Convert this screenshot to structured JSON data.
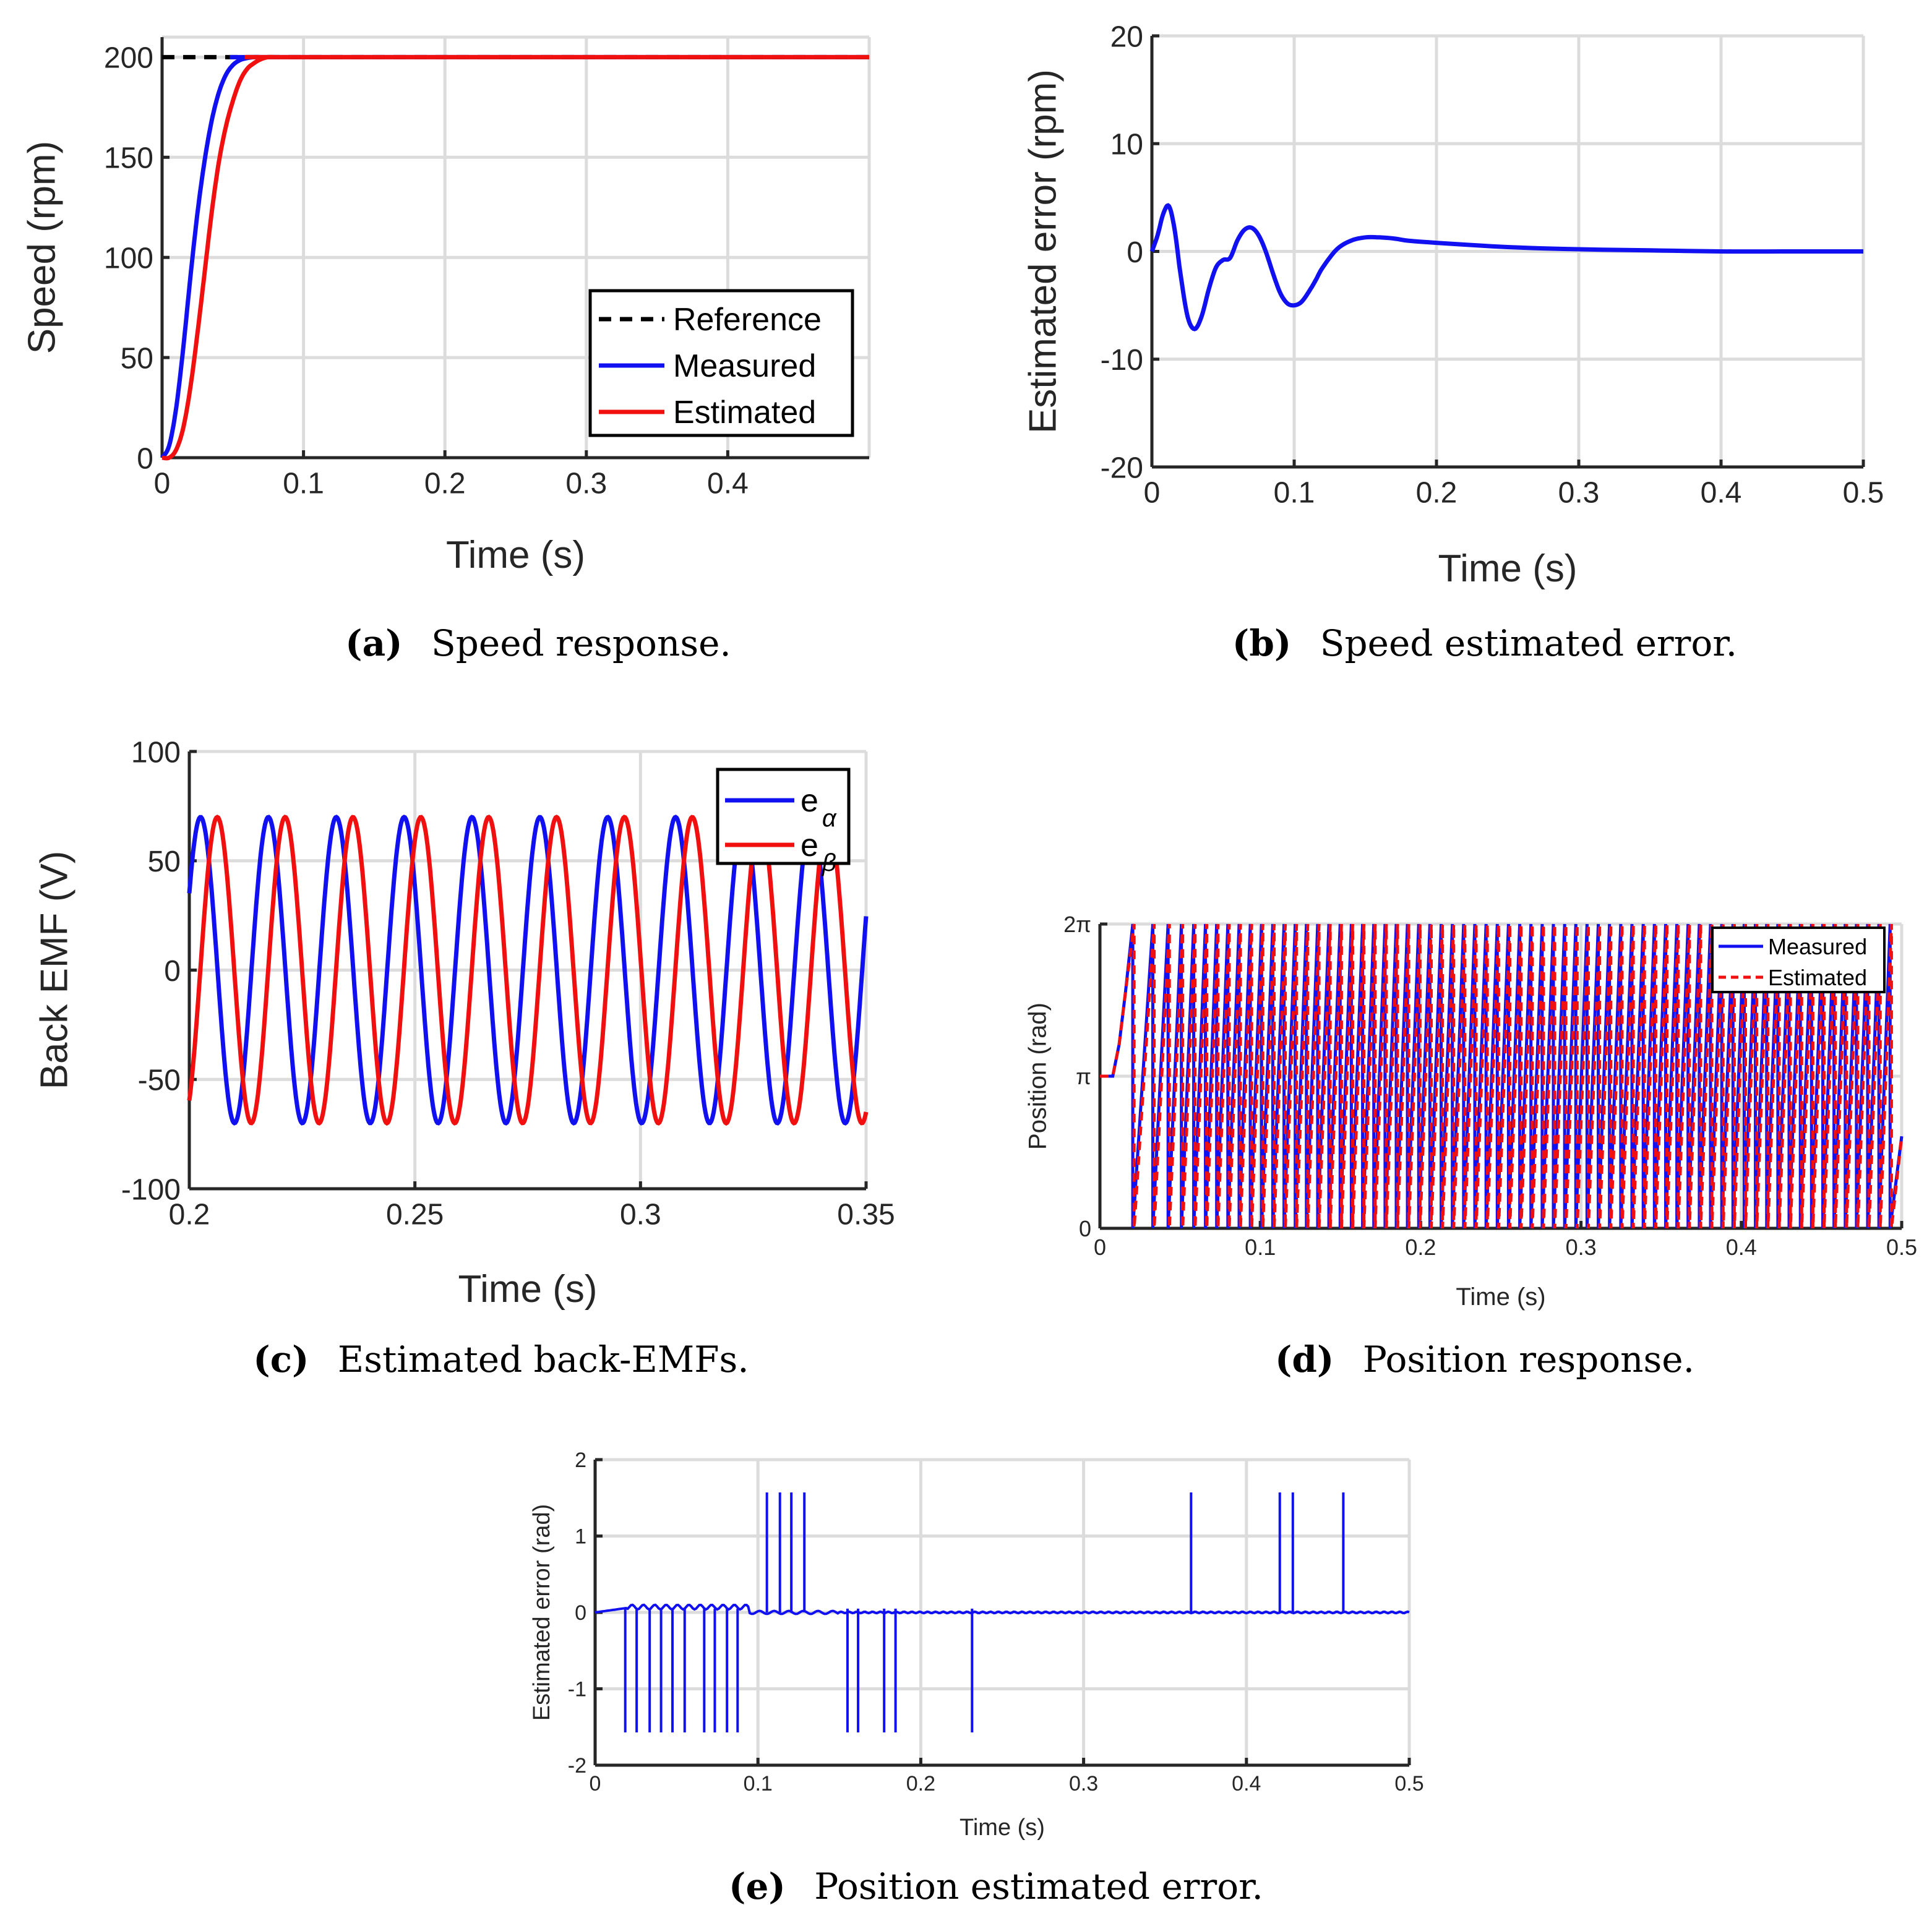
{
  "colors": {
    "blue": "#1010f0",
    "red": "#f01010",
    "black": "#000000",
    "grid": "#dcdcdc",
    "axis": "#262626"
  },
  "captions": [
    {
      "letter": "(a)",
      "text": "Speed response."
    },
    {
      "letter": "(b)",
      "text": "Speed estimated error."
    },
    {
      "letter": "(c)",
      "text": "Estimated back-EMFs."
    },
    {
      "letter": "(d)",
      "text": "Position response."
    },
    {
      "letter": "(e)",
      "text": "Position estimated error."
    }
  ],
  "chart_data": [
    {
      "id": "a",
      "type": "line",
      "title": "Speed response.",
      "xlabel": "Time (s)",
      "ylabel": "Speed (rpm)",
      "xlim": [
        0,
        0.5
      ],
      "ylim": [
        0,
        210
      ],
      "xticks": [
        0,
        0.1,
        0.2,
        0.3,
        0.4
      ],
      "xtick_labels": [
        "0",
        "0.1",
        "0.2",
        "0.3",
        "0.4"
      ],
      "yticks": [
        0,
        50,
        100,
        150,
        200
      ],
      "ytick_labels": [
        "0",
        "50",
        "100",
        "150",
        "200"
      ],
      "grid": true,
      "legend_position": "lower-right",
      "series": [
        {
          "name": "Reference",
          "style": "dashed",
          "color": "#000000",
          "x": [
            0,
            0.08,
            0.5
          ],
          "y": [
            200,
            200,
            200
          ]
        },
        {
          "name": "Measured",
          "style": "solid",
          "color": "#1010f0",
          "x": [
            0,
            0.005,
            0.01,
            0.015,
            0.02,
            0.025,
            0.03,
            0.035,
            0.04,
            0.045,
            0.05,
            0.055,
            0.06,
            0.065,
            0.07,
            0.075,
            0.08,
            0.5
          ],
          "y": [
            0,
            6,
            25,
            55,
            90,
            122,
            148,
            168,
            182,
            191,
            196,
            198.5,
            199.5,
            200,
            200,
            200,
            200,
            200
          ]
        },
        {
          "name": "Estimated",
          "style": "solid",
          "color": "#f01010",
          "x": [
            0,
            0.005,
            0.01,
            0.015,
            0.02,
            0.025,
            0.03,
            0.035,
            0.04,
            0.045,
            0.05,
            0.055,
            0.06,
            0.065,
            0.07,
            0.075,
            0.08,
            0.085,
            0.09,
            0.5
          ],
          "y": [
            0,
            0,
            4,
            15,
            35,
            62,
            92,
            122,
            147,
            165,
            178,
            188,
            194,
            197,
            199,
            200,
            200,
            200,
            200,
            200
          ]
        }
      ]
    },
    {
      "id": "b",
      "type": "line",
      "title": "Speed estimated error.",
      "xlabel": "Time (s)",
      "ylabel": "Estimated error (rpm)",
      "xlim": [
        0,
        0.5
      ],
      "ylim": [
        -20,
        20
      ],
      "xticks": [
        0,
        0.1,
        0.2,
        0.3,
        0.4,
        0.5
      ],
      "xtick_labels": [
        "0",
        "0.1",
        "0.2",
        "0.3",
        "0.4",
        "0.5"
      ],
      "yticks": [
        -20,
        -10,
        0,
        10,
        20
      ],
      "ytick_labels": [
        "-20",
        "-10",
        "0",
        "10",
        "20"
      ],
      "grid": true,
      "series": [
        {
          "name": "Estimated error",
          "style": "solid",
          "color": "#1010f0",
          "x": [
            0,
            0.004,
            0.008,
            0.012,
            0.016,
            0.02,
            0.025,
            0.03,
            0.035,
            0.04,
            0.045,
            0.05,
            0.055,
            0.06,
            0.065,
            0.07,
            0.075,
            0.08,
            0.085,
            0.09,
            0.095,
            0.1,
            0.105,
            0.11,
            0.115,
            0.12,
            0.13,
            0.14,
            0.15,
            0.16,
            0.17,
            0.18,
            0.2,
            0.25,
            0.3,
            0.35,
            0.4,
            0.45,
            0.5
          ],
          "y": [
            0,
            1.5,
            3.5,
            4.2,
            2,
            -2,
            -6,
            -7.2,
            -6,
            -3.5,
            -1.5,
            -0.8,
            -0.6,
            1,
            2,
            2.2,
            1.5,
            0,
            -2,
            -3.8,
            -4.8,
            -5,
            -4.7,
            -3.8,
            -2.7,
            -1.5,
            0.2,
            1,
            1.3,
            1.3,
            1.2,
            1,
            0.8,
            0.4,
            0.2,
            0.1,
            0,
            0,
            0
          ]
        }
      ]
    },
    {
      "id": "c",
      "type": "line",
      "title": "Estimated back-EMFs.",
      "xlabel": "Time (s)",
      "ylabel": "Back EMF (V)",
      "xlim": [
        0.2,
        0.35
      ],
      "ylim": [
        -100,
        100
      ],
      "xticks": [
        0.2,
        0.25,
        0.3,
        0.35
      ],
      "xtick_labels": [
        "0.2",
        "0.25",
        "0.3",
        "0.35"
      ],
      "yticks": [
        -100,
        -50,
        0,
        50,
        100
      ],
      "ytick_labels": [
        "-100",
        "-50",
        "0",
        "50",
        "100"
      ],
      "grid": true,
      "legend_position": "top-right",
      "legend": [
        {
          "name": "e",
          "subscript": "α",
          "color": "#1010f0"
        },
        {
          "name": "e",
          "subscript": "β",
          "color": "#f01010"
        }
      ],
      "series": [
        {
          "name": "e_alpha",
          "color": "#1010f0",
          "amplitude": 70,
          "period": 0.01504,
          "peak_time": 0.2025
        },
        {
          "name": "e_beta",
          "color": "#f01010",
          "amplitude": 70,
          "period": 0.01504,
          "peak_time": 0.2062
        }
      ]
    },
    {
      "id": "d",
      "type": "line",
      "title": "Position response.",
      "xlabel": "Time (s)",
      "ylabel": "Position (rad)",
      "xlim": [
        0,
        0.5
      ],
      "ylim": [
        0,
        6.2832
      ],
      "xticks": [
        0,
        0.1,
        0.2,
        0.3,
        0.4,
        0.5
      ],
      "xtick_labels": [
        "0",
        "0.1",
        "0.2",
        "0.3",
        "0.4",
        "0.5"
      ],
      "yticks": [
        0,
        3.1416,
        6.2832
      ],
      "ytick_labels": [
        "0",
        "π",
        "2π"
      ],
      "grid": true,
      "legend_position": "top-right",
      "series": [
        {
          "name": "Measured",
          "style": "solid",
          "color": "#1010f0",
          "wrap_times": [
            0.0205,
            0.033,
            0.0425,
            0.0508,
            0.0585,
            0.0658,
            0.0728,
            0.0798,
            0.0868,
            0.0938,
            0.1008,
            0.1078,
            0.1148,
            0.1218,
            0.1288,
            0.1358,
            0.1428,
            0.1498,
            0.1568,
            0.1638,
            0.1708,
            0.1778,
            0.1848,
            0.1918,
            0.1988,
            0.2058,
            0.2128,
            0.2198,
            0.2268,
            0.2338,
            0.2408,
            0.2478,
            0.2548,
            0.2618,
            0.2688,
            0.2758,
            0.2828,
            0.2898,
            0.2968,
            0.3038,
            0.3108,
            0.3178,
            0.3248,
            0.3318,
            0.3388,
            0.3458,
            0.3528,
            0.3598,
            0.3668,
            0.3738,
            0.3808,
            0.3878,
            0.3948,
            0.4018,
            0.4088,
            0.4158,
            0.4228,
            0.4298,
            0.4368,
            0.4438,
            0.4508,
            0.4578,
            0.4648,
            0.4718,
            0.4788,
            0.4858,
            0.4928
          ],
          "start_value": 3.1416,
          "end_value": 1.9
        },
        {
          "name": "Estimated",
          "style": "dashed",
          "color": "#f01010",
          "lag": 0.0008
        }
      ]
    },
    {
      "id": "e",
      "type": "line",
      "title": "Position estimated error.",
      "xlabel": "Time (s)",
      "ylabel": "Estimated error (rad)",
      "xlim": [
        0,
        0.5
      ],
      "ylim": [
        -2,
        2
      ],
      "xticks": [
        0,
        0.1,
        0.2,
        0.3,
        0.4,
        0.5
      ],
      "xtick_labels": [
        "0",
        "0.1",
        "0.2",
        "0.3",
        "0.4",
        "0.5"
      ],
      "yticks": [
        -2,
        -1,
        0,
        1,
        2
      ],
      "ytick_labels": [
        "-2",
        "-1",
        "0",
        "1",
        "2"
      ],
      "grid": true,
      "series": [
        {
          "name": "Estimated error",
          "color": "#1010f0",
          "baseline_early": 0.1,
          "baseline_late": 0.0,
          "negative_spikes": [
            0.0185,
            0.0255,
            0.0335,
            0.0405,
            0.0475,
            0.055,
            0.067,
            0.0735,
            0.081,
            0.0875,
            0.155,
            0.1615,
            0.1775,
            0.1845,
            0.2315
          ],
          "negative_value": -1.5708,
          "positive_spikes": [
            0.1055,
            0.1135,
            0.1205,
            0.1285,
            0.366,
            0.4205,
            0.4285,
            0.4595
          ],
          "positive_value": 1.5708
        }
      ]
    }
  ]
}
